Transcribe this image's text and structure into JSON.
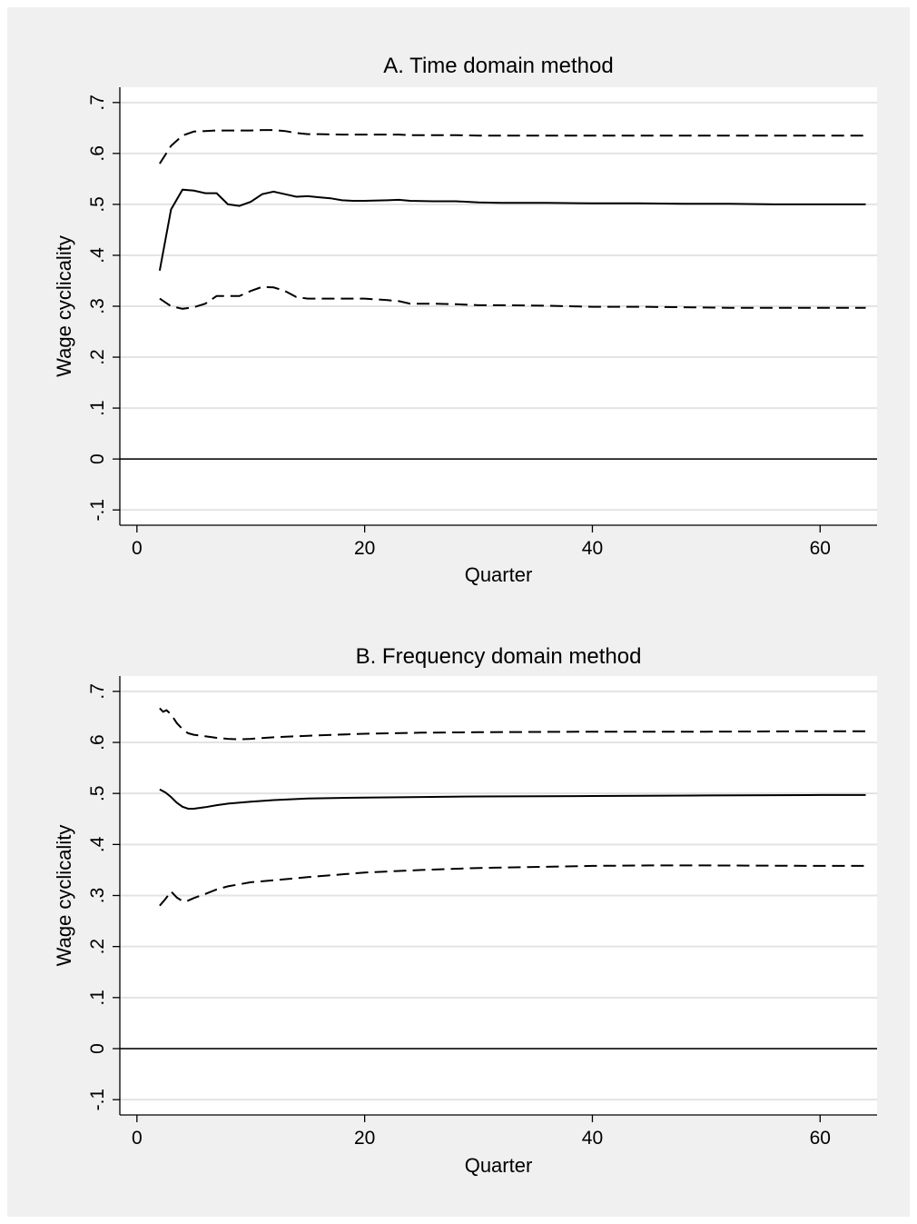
{
  "chart_data": [
    {
      "type": "line",
      "title": "A. Time domain method",
      "xlabel": "Quarter",
      "ylabel": "Wage cyclicality",
      "xlim": [
        -1.5,
        65
      ],
      "ylim": [
        -0.13,
        0.73
      ],
      "xticks": [
        0,
        20,
        40,
        60
      ],
      "xtick_labels": [
        "0",
        "20",
        "40",
        "60"
      ],
      "yticks": [
        -0.1,
        0,
        0.1,
        0.2,
        0.3,
        0.4,
        0.5,
        0.6,
        0.7
      ],
      "ytick_labels": [
        "-.1",
        "0",
        ".1",
        ".2",
        ".3",
        ".4",
        ".5",
        ".6",
        ".7"
      ],
      "grid": true,
      "reference_line_y": 0,
      "series": [
        {
          "style": "solid",
          "x": [
            2,
            3,
            4,
            5,
            6,
            7,
            8,
            9,
            10,
            11,
            12,
            13,
            14,
            15,
            16,
            17,
            18,
            19,
            20,
            22,
            23,
            24,
            26,
            28,
            30,
            32,
            36,
            40,
            44,
            48,
            52,
            56,
            60,
            64
          ],
          "y": [
            0.37,
            0.49,
            0.529,
            0.527,
            0.522,
            0.522,
            0.5,
            0.497,
            0.505,
            0.52,
            0.525,
            0.52,
            0.515,
            0.516,
            0.514,
            0.512,
            0.508,
            0.507,
            0.507,
            0.508,
            0.509,
            0.507,
            0.506,
            0.506,
            0.504,
            0.503,
            0.503,
            0.502,
            0.502,
            0.501,
            0.501,
            0.5,
            0.5,
            0.5
          ]
        },
        {
          "style": "dashed",
          "x": [
            2,
            3,
            4,
            5,
            6,
            7,
            8,
            9,
            10,
            11,
            12,
            13,
            14,
            15,
            16,
            18,
            20,
            22,
            23,
            24,
            26,
            28,
            30,
            32,
            36,
            40,
            44,
            48,
            52,
            56,
            60,
            64
          ],
          "y": [
            0.58,
            0.615,
            0.635,
            0.643,
            0.644,
            0.645,
            0.645,
            0.645,
            0.645,
            0.646,
            0.646,
            0.644,
            0.64,
            0.638,
            0.638,
            0.637,
            0.637,
            0.637,
            0.637,
            0.636,
            0.636,
            0.636,
            0.635,
            0.635,
            0.635,
            0.635,
            0.635,
            0.635,
            0.635,
            0.635,
            0.635,
            0.635
          ]
        },
        {
          "style": "dashed",
          "x": [
            2,
            3,
            4,
            5,
            6,
            7,
            8,
            9,
            10,
            11,
            12,
            13,
            14,
            15,
            16,
            18,
            20,
            22,
            23,
            24,
            26,
            28,
            30,
            32,
            36,
            40,
            44,
            48,
            52,
            56,
            60,
            64
          ],
          "y": [
            0.315,
            0.3,
            0.295,
            0.298,
            0.305,
            0.32,
            0.32,
            0.32,
            0.33,
            0.338,
            0.337,
            0.33,
            0.318,
            0.315,
            0.315,
            0.315,
            0.315,
            0.312,
            0.31,
            0.305,
            0.305,
            0.304,
            0.302,
            0.302,
            0.301,
            0.299,
            0.299,
            0.298,
            0.297,
            0.297,
            0.297,
            0.297
          ]
        }
      ]
    },
    {
      "type": "line",
      "title": "B. Frequency domain method",
      "xlabel": "Quarter",
      "ylabel": "Wage cyclicality",
      "xlim": [
        -1.5,
        65
      ],
      "ylim": [
        -0.13,
        0.73
      ],
      "xticks": [
        0,
        20,
        40,
        60
      ],
      "xtick_labels": [
        "0",
        "20",
        "40",
        "60"
      ],
      "yticks": [
        -0.1,
        0,
        0.1,
        0.2,
        0.3,
        0.4,
        0.5,
        0.6,
        0.7
      ],
      "ytick_labels": [
        "-.1",
        "0",
        ".1",
        ".2",
        ".3",
        ".4",
        ".5",
        ".6",
        ".7"
      ],
      "grid": true,
      "reference_line_y": 0,
      "series": [
        {
          "style": "solid",
          "x": [
            2,
            2.5,
            3,
            3.5,
            4,
            4.5,
            5,
            6,
            7,
            8,
            10,
            12,
            15,
            20,
            25,
            30,
            40,
            50,
            60,
            64
          ],
          "y": [
            0.508,
            0.502,
            0.493,
            0.482,
            0.474,
            0.47,
            0.47,
            0.473,
            0.477,
            0.48,
            0.484,
            0.487,
            0.49,
            0.492,
            0.493,
            0.494,
            0.495,
            0.496,
            0.497,
            0.497
          ]
        },
        {
          "style": "dashed",
          "x": [
            2,
            2.3,
            2.6,
            3,
            3.5,
            4,
            4.5,
            5,
            6,
            7,
            8,
            9,
            10,
            12,
            15,
            20,
            25,
            30,
            40,
            50,
            60,
            64
          ],
          "y": [
            0.667,
            0.66,
            0.663,
            0.655,
            0.638,
            0.626,
            0.618,
            0.615,
            0.612,
            0.609,
            0.607,
            0.606,
            0.607,
            0.61,
            0.613,
            0.617,
            0.619,
            0.62,
            0.621,
            0.621,
            0.622,
            0.622
          ]
        },
        {
          "style": "dashed",
          "x": [
            2,
            2.5,
            3,
            3.5,
            4,
            4.5,
            5,
            6,
            7,
            8,
            10,
            12,
            15,
            20,
            25,
            30,
            40,
            45,
            50,
            60,
            64
          ],
          "y": [
            0.28,
            0.293,
            0.308,
            0.296,
            0.289,
            0.29,
            0.295,
            0.303,
            0.312,
            0.318,
            0.326,
            0.33,
            0.336,
            0.345,
            0.35,
            0.354,
            0.358,
            0.359,
            0.359,
            0.358,
            0.358
          ]
        }
      ]
    }
  ]
}
